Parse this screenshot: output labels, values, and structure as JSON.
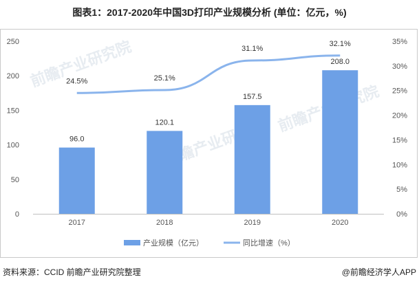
{
  "header": {
    "title": "图表1：2017-2020年中国3D打印产业规模分析 (单位：亿元，%)"
  },
  "footer": {
    "source": "资料来源：CCID 前瞻产业研究院整理",
    "credit": "@前瞻经济学人APP"
  },
  "watermarks": [
    "前瞻产业研究院",
    "前瞻产业研究院",
    "前瞻产业研究院"
  ],
  "colors": {
    "bar": "#6da0e6",
    "line": "#8ab4ec",
    "gridline": "#e6e6e6"
  },
  "chart_data": {
    "type": "bar",
    "categories": [
      "2017",
      "2018",
      "2019",
      "2020"
    ],
    "series": [
      {
        "name": "产业规模（亿元）",
        "type": "bar",
        "axis": "left",
        "values": [
          96.0,
          120.1,
          157.5,
          208.0
        ],
        "labels": [
          "96.0",
          "120.1",
          "157.5",
          "208.0"
        ]
      },
      {
        "name": "同比增速（%）",
        "type": "line",
        "axis": "right",
        "values": [
          24.5,
          25.1,
          31.1,
          32.1
        ],
        "labels": [
          "24.5%",
          "25.1%",
          "31.1%",
          "32.1%"
        ]
      }
    ],
    "y_left": {
      "ylim": [
        0,
        250
      ],
      "ticks": [
        "0",
        "50",
        "100",
        "150",
        "200",
        "250"
      ]
    },
    "y_right": {
      "ylim": [
        0,
        35
      ],
      "ticks": [
        "0%",
        "5%",
        "10%",
        "15%",
        "20%",
        "25%",
        "30%",
        "35%"
      ]
    },
    "legend_position": "bottom-center",
    "grid": false
  }
}
